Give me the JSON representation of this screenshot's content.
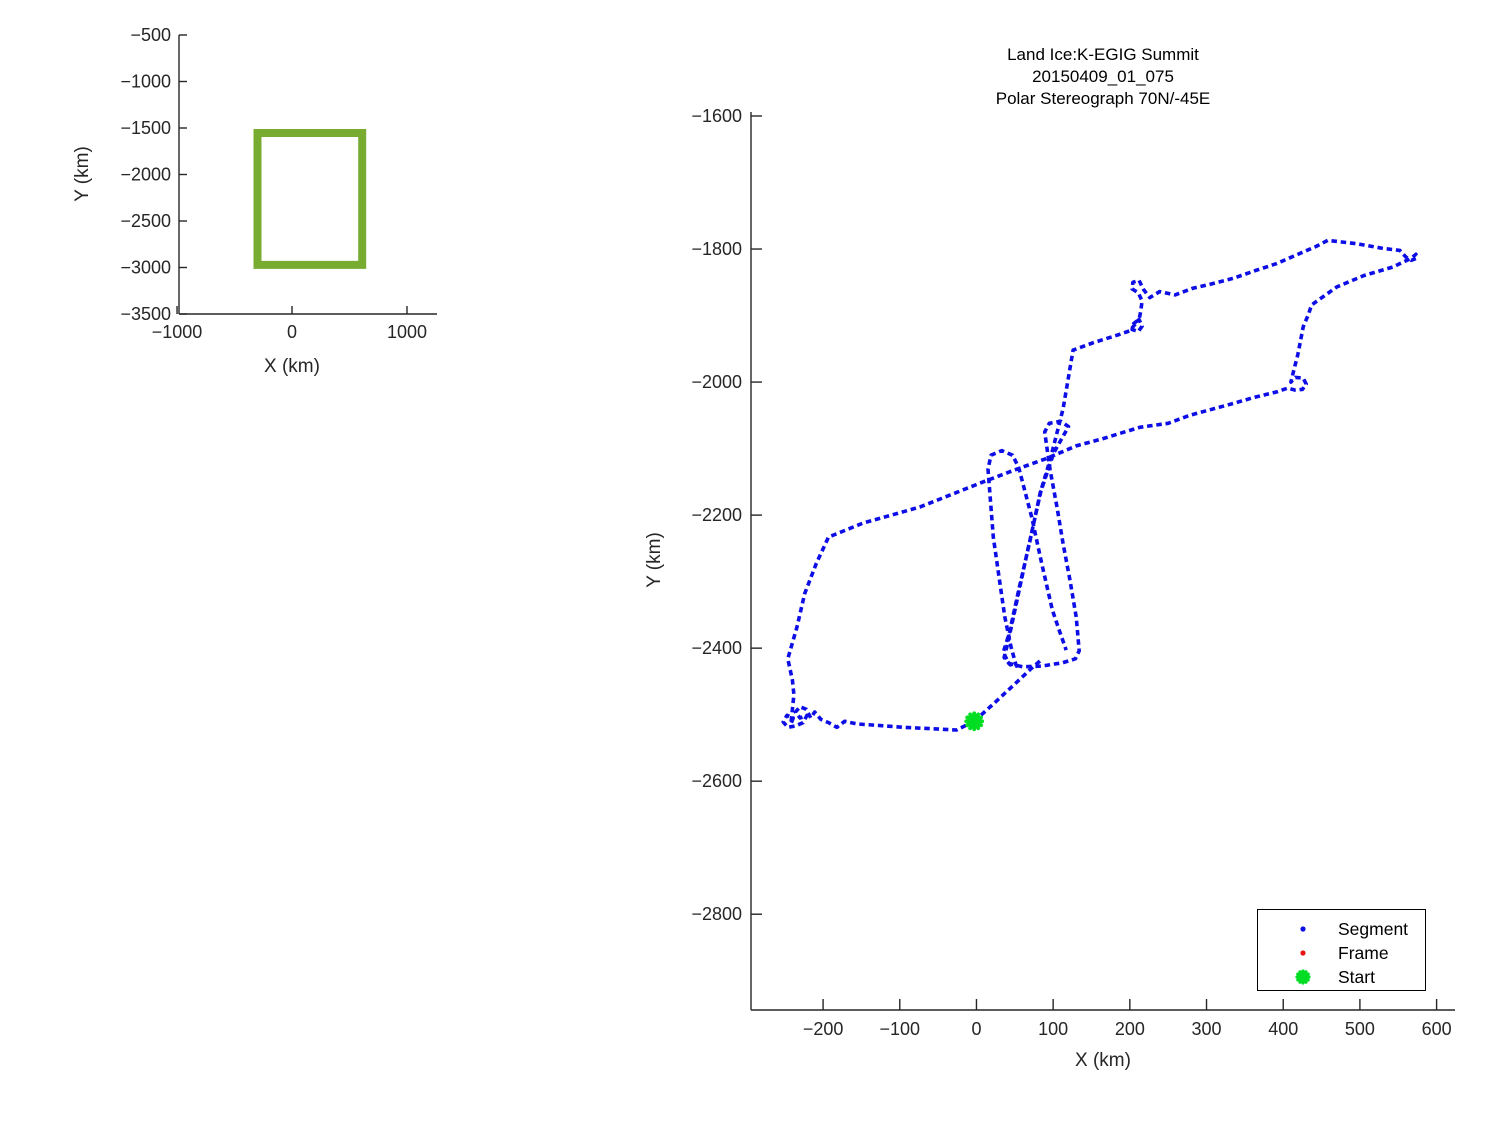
{
  "window": {
    "background": "#ffffff"
  },
  "colors": {
    "track_blue": "#0d0de6",
    "frame_red": "#e81414",
    "start_green": "#00dd22",
    "box_green": "#77AC30",
    "axis": "#262626",
    "text": "#000000"
  },
  "main_title": {
    "line1": "Land Ice:K-EGIG Summit",
    "line2": "20150409_01_075",
    "line3": "Polar Stereograph 70N/-45E"
  },
  "legend": {
    "entries": [
      {
        "label": "Segment",
        "marker": "dot",
        "color": "#0d0de6"
      },
      {
        "label": "Frame",
        "marker": "dot",
        "color": "#e81414"
      },
      {
        "label": "Start",
        "marker": "star",
        "color": "#00dd22"
      }
    ]
  },
  "chart_data": [
    {
      "type": "line",
      "name": "overview-map",
      "title": "",
      "xlabel": "X (km)",
      "ylabel": "Y (km)",
      "xlim": [
        -983,
        1261
      ],
      "ylim": [
        -3500,
        -500
      ],
      "xticks": [
        -1000,
        0,
        1000
      ],
      "yticks": [
        -500,
        -1000,
        -1500,
        -2000,
        -2500,
        -3000,
        -3500
      ],
      "grid": false,
      "legend_position": "none",
      "series": [
        {
          "name": "coverage-box",
          "style": "solid",
          "color": "#77AC30",
          "width": 8,
          "closed": true,
          "points_km": [
            [
              -300,
              -1554
            ],
            [
              610,
              -1554
            ],
            [
              610,
              -2972
            ],
            [
              -300,
              -2972
            ]
          ]
        }
      ]
    },
    {
      "type": "line",
      "name": "flight-track",
      "title": "Land Ice:K-EGIG Summit 20150409_01_075 Polar Stereograph 70N/-45E",
      "xlabel": "X (km)",
      "ylabel": "Y (km)",
      "xlim": [
        -294,
        624
      ],
      "ylim": [
        -2944,
        -1594
      ],
      "xticks": [
        -200,
        -100,
        0,
        100,
        200,
        300,
        400,
        500,
        600
      ],
      "yticks": [
        -1600,
        -1800,
        -2000,
        -2200,
        -2400,
        -2600,
        -2800
      ],
      "grid": false,
      "legend_position": "southeast",
      "start_marker": {
        "x": -3,
        "y": -2510,
        "color": "#00dd22",
        "shape": "asterisk"
      },
      "series": [
        {
          "name": "segment-track-main",
          "style": "dashed",
          "color": "#0d0de6",
          "width": 3.6,
          "closed": false,
          "points_km": [
            [
              -3,
              -2510
            ],
            [
              -26,
              -2523
            ],
            [
              -61,
              -2521
            ],
            [
              -96,
              -2519
            ],
            [
              -130,
              -2516
            ],
            [
              -155,
              -2514
            ],
            [
              -172,
              -2510
            ],
            [
              -182,
              -2519
            ],
            [
              -193,
              -2512
            ],
            [
              -203,
              -2507
            ],
            [
              -211,
              -2496
            ],
            [
              -216,
              -2505
            ],
            [
              -222,
              -2492
            ],
            [
              -230,
              -2488
            ],
            [
              -236,
              -2496
            ],
            [
              -230,
              -2505
            ],
            [
              -221,
              -2501
            ],
            [
              -226,
              -2512
            ],
            [
              -236,
              -2517
            ],
            [
              -246,
              -2519
            ],
            [
              -252,
              -2511
            ],
            [
              -247,
              -2501
            ],
            [
              -239,
              -2505
            ],
            [
              -242,
              -2514
            ],
            [
              -238,
              -2470
            ],
            [
              -240,
              -2448
            ],
            [
              -246,
              -2416
            ],
            [
              -234,
              -2368
            ],
            [
              -224,
              -2318
            ],
            [
              -209,
              -2273
            ],
            [
              -193,
              -2233
            ],
            [
              -148,
              -2212
            ],
            [
              -74,
              -2188
            ],
            [
              9,
              -2150
            ],
            [
              50,
              -2132
            ],
            [
              91,
              -2115
            ],
            [
              130,
              -2096
            ],
            [
              165,
              -2085
            ],
            [
              213,
              -2068
            ],
            [
              250,
              -2062
            ],
            [
              278,
              -2050
            ],
            [
              335,
              -2032
            ],
            [
              362,
              -2023
            ],
            [
              391,
              -2015
            ],
            [
              406,
              -2009
            ],
            [
              415,
              -2012
            ],
            [
              425,
              -2011
            ],
            [
              430,
              -2003
            ],
            [
              426,
              -1994
            ],
            [
              416,
              -1993
            ],
            [
              410,
              -2000
            ],
            [
              414,
              -1981
            ],
            [
              419,
              -1959
            ],
            [
              426,
              -1917
            ],
            [
              433,
              -1898
            ],
            [
              437,
              -1884
            ],
            [
              470,
              -1857
            ],
            [
              505,
              -1840
            ],
            [
              543,
              -1827
            ],
            [
              563,
              -1816
            ],
            [
              569,
              -1812
            ],
            [
              573,
              -1808
            ],
            [
              574,
              -1814
            ],
            [
              567,
              -1817
            ],
            [
              560,
              -1812
            ],
            [
              552,
              -1802
            ],
            [
              530,
              -1799
            ],
            [
              496,
              -1792
            ],
            [
              458,
              -1787
            ],
            [
              443,
              -1796
            ],
            [
              417,
              -1809
            ],
            [
              391,
              -1822
            ],
            [
              362,
              -1833
            ],
            [
              335,
              -1844
            ],
            [
              308,
              -1852
            ],
            [
              282,
              -1859
            ],
            [
              259,
              -1869
            ],
            [
              239,
              -1864
            ],
            [
              226,
              -1873
            ],
            [
              218,
              -1861
            ],
            [
              212,
              -1847
            ],
            [
              204,
              -1850
            ],
            [
              203,
              -1860
            ],
            [
              211,
              -1866
            ],
            [
              216,
              -1878
            ],
            [
              214,
              -1895
            ],
            [
              212,
              -1906
            ],
            [
              205,
              -1912
            ],
            [
              203,
              -1921
            ],
            [
              211,
              -1924
            ],
            [
              216,
              -1916
            ],
            [
              212,
              -1906
            ],
            [
              200,
              -1923
            ],
            [
              185,
              -1929
            ],
            [
              152,
              -1941
            ],
            [
              126,
              -1952
            ],
            [
              113,
              -2040
            ],
            [
              96,
              -2117
            ],
            [
              83,
              -2167
            ],
            [
              70,
              -2238
            ],
            [
              56,
              -2308
            ],
            [
              43,
              -2377
            ],
            [
              35,
              -2406
            ],
            [
              42,
              -2423
            ],
            [
              60,
              -2428
            ],
            [
              85,
              -2427
            ],
            [
              112,
              -2422
            ],
            [
              129,
              -2416
            ],
            [
              134,
              -2404
            ],
            [
              130,
              -2353
            ],
            [
              122,
              -2298
            ],
            [
              113,
              -2243
            ],
            [
              105,
              -2188
            ],
            [
              96,
              -2132
            ],
            [
              89,
              -2075
            ],
            [
              95,
              -2062
            ],
            [
              110,
              -2059
            ],
            [
              120,
              -2067
            ],
            [
              101,
              -2106
            ],
            [
              84,
              -2164
            ],
            [
              67,
              -2252
            ],
            [
              51,
              -2338
            ],
            [
              41,
              -2392
            ],
            [
              36,
              -2414
            ],
            [
              44,
              -2425
            ],
            [
              52,
              -2427
            ],
            [
              45,
              -2398
            ],
            [
              37,
              -2353
            ],
            [
              30,
              -2298
            ],
            [
              22,
              -2233
            ],
            [
              15,
              -2131
            ],
            [
              19,
              -2110
            ],
            [
              33,
              -2103
            ],
            [
              47,
              -2110
            ],
            [
              55,
              -2128
            ],
            [
              72,
              -2203
            ],
            [
              85,
              -2272
            ],
            [
              99,
              -2343
            ],
            [
              109,
              -2377
            ],
            [
              117,
              -2403
            ]
          ]
        },
        {
          "name": "segment-track-approach",
          "style": "dashed",
          "color": "#0d0de6",
          "width": 3.6,
          "closed": false,
          "points_km": [
            [
              -3,
              -2510
            ],
            [
              22,
              -2484
            ],
            [
              48,
              -2456
            ],
            [
              72,
              -2430
            ],
            [
              84,
              -2418
            ]
          ]
        }
      ]
    }
  ]
}
